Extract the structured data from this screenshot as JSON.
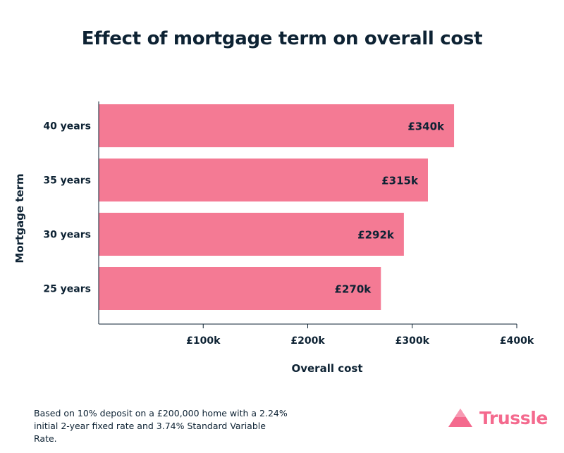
{
  "chart_data": {
    "type": "bar",
    "orientation": "horizontal",
    "title": "Effect of mortgage term on overall cost",
    "xlabel": "Overall cost",
    "ylabel": "Mortgage term",
    "categories": [
      "40 years",
      "35 years",
      "30 years",
      "25 years"
    ],
    "values": [
      340,
      315,
      292,
      270
    ],
    "value_labels": [
      "£340k",
      "£315k",
      "£292k",
      "£270k"
    ],
    "xlim": [
      0,
      400
    ],
    "xticks": [
      100,
      200,
      300,
      400
    ],
    "xtick_labels": [
      "£100k",
      "£200k",
      "£300k",
      "£400k"
    ],
    "bar_color": "#f47a94"
  },
  "footnote": {
    "line1": "Based on 10% deposit on a £200,000 home with a 2.24%",
    "line2": "initial 2-year fixed rate and 3.74% Standard Variable Rate."
  },
  "brand": {
    "name": "Trussle",
    "color": "#f46a8e",
    "icon": "trussle-logo-icon"
  }
}
